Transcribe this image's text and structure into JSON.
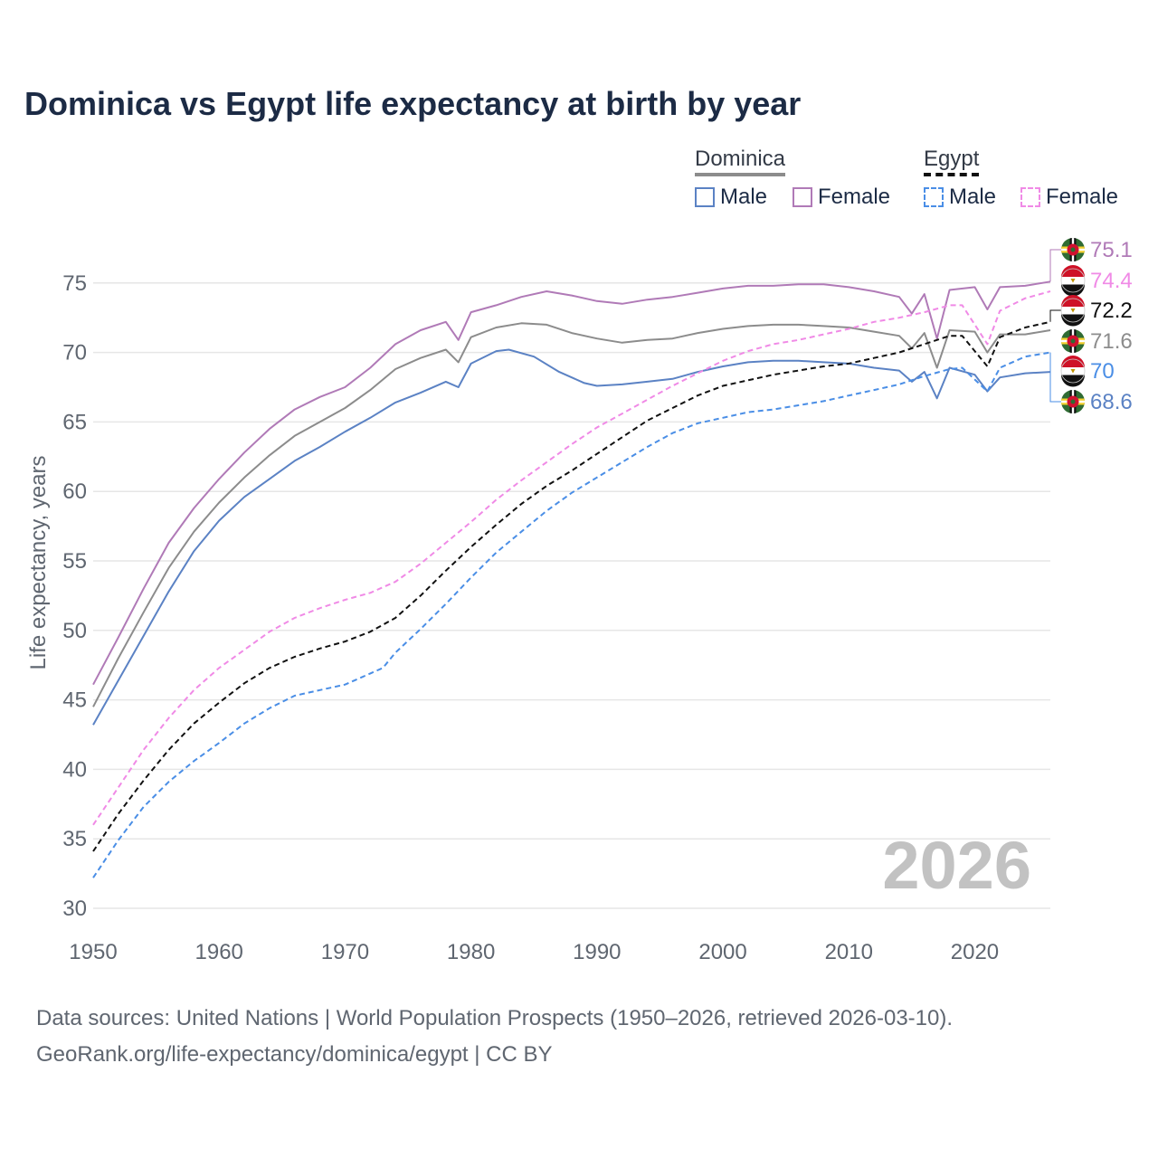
{
  "title": "Dominica vs Egypt life expectancy at birth by year",
  "legend": {
    "groups": [
      {
        "name": "Dominica",
        "items": [
          "Male",
          "Female"
        ]
      },
      {
        "name": "Egypt",
        "items": [
          "Male",
          "Female"
        ]
      }
    ]
  },
  "source": {
    "line1": "Data sources: United Nations | World Population Prospects (1950–2026, retrieved 2026-03-10).",
    "line2": "GeoRank.org/life-expectancy/dominica/egypt | CC BY"
  },
  "colors": {
    "dominica_male": "#5b82c4",
    "dominica_female": "#b07ab7",
    "dominica_total": "#8c8c8c",
    "egypt_male": "#4a8ee6",
    "egypt_female": "#f08ae6",
    "egypt_total": "#111111",
    "grid": "#e6e6e6",
    "axis_text": "#5f6670",
    "watermark": "#c2c2c2"
  },
  "chart_data": {
    "type": "line",
    "title": "Dominica vs Egypt life expectancy at birth by year",
    "xlabel": "",
    "ylabel": "Life expectancy, years",
    "xlim": [
      1950,
      2026
    ],
    "ylim": [
      30,
      78
    ],
    "xticks": [
      1950,
      1960,
      1970,
      1980,
      1990,
      2000,
      2010,
      2020
    ],
    "yticks": [
      30,
      35,
      40,
      45,
      50,
      55,
      60,
      65,
      70,
      75
    ],
    "grid": true,
    "watermark_year": "2026",
    "series": [
      {
        "name": "Dominica Female",
        "country": "Dominica",
        "sex": "Female",
        "style": "solid",
        "color_key": "dominica_female",
        "end_label": "75.1",
        "points": [
          [
            1950,
            46.1
          ],
          [
            1952,
            49.5
          ],
          [
            1954,
            53.0
          ],
          [
            1956,
            56.3
          ],
          [
            1958,
            58.8
          ],
          [
            1960,
            60.9
          ],
          [
            1962,
            62.8
          ],
          [
            1964,
            64.5
          ],
          [
            1966,
            65.9
          ],
          [
            1968,
            66.8
          ],
          [
            1970,
            67.5
          ],
          [
            1972,
            68.9
          ],
          [
            1974,
            70.6
          ],
          [
            1976,
            71.6
          ],
          [
            1978,
            72.2
          ],
          [
            1979,
            70.9
          ],
          [
            1980,
            72.9
          ],
          [
            1982,
            73.4
          ],
          [
            1984,
            74.0
          ],
          [
            1986,
            74.4
          ],
          [
            1988,
            74.1
          ],
          [
            1990,
            73.7
          ],
          [
            1992,
            73.5
          ],
          [
            1994,
            73.8
          ],
          [
            1996,
            74.0
          ],
          [
            1998,
            74.3
          ],
          [
            2000,
            74.6
          ],
          [
            2002,
            74.8
          ],
          [
            2004,
            74.8
          ],
          [
            2006,
            74.9
          ],
          [
            2008,
            74.9
          ],
          [
            2010,
            74.7
          ],
          [
            2012,
            74.4
          ],
          [
            2014,
            74.0
          ],
          [
            2015,
            72.8
          ],
          [
            2016,
            74.2
          ],
          [
            2017,
            71.0
          ],
          [
            2018,
            74.5
          ],
          [
            2020,
            74.7
          ],
          [
            2021,
            73.1
          ],
          [
            2022,
            74.7
          ],
          [
            2024,
            74.8
          ],
          [
            2026,
            75.1
          ]
        ]
      },
      {
        "name": "Dominica",
        "country": "Dominica",
        "sex": "Total",
        "style": "solid",
        "color_key": "dominica_total",
        "end_label": "71.6",
        "points": [
          [
            1950,
            44.5
          ],
          [
            1952,
            48.0
          ],
          [
            1954,
            51.3
          ],
          [
            1956,
            54.5
          ],
          [
            1958,
            57.1
          ],
          [
            1960,
            59.2
          ],
          [
            1962,
            61.0
          ],
          [
            1964,
            62.6
          ],
          [
            1966,
            64.0
          ],
          [
            1968,
            65.0
          ],
          [
            1970,
            66.0
          ],
          [
            1972,
            67.3
          ],
          [
            1974,
            68.8
          ],
          [
            1976,
            69.6
          ],
          [
            1978,
            70.2
          ],
          [
            1979,
            69.3
          ],
          [
            1980,
            71.1
          ],
          [
            1982,
            71.8
          ],
          [
            1984,
            72.1
          ],
          [
            1986,
            72.0
          ],
          [
            1988,
            71.4
          ],
          [
            1990,
            71.0
          ],
          [
            1992,
            70.7
          ],
          [
            1994,
            70.9
          ],
          [
            1996,
            71.0
          ],
          [
            1998,
            71.4
          ],
          [
            2000,
            71.7
          ],
          [
            2002,
            71.9
          ],
          [
            2004,
            72.0
          ],
          [
            2006,
            72.0
          ],
          [
            2008,
            71.9
          ],
          [
            2010,
            71.8
          ],
          [
            2012,
            71.5
          ],
          [
            2014,
            71.2
          ],
          [
            2015,
            70.3
          ],
          [
            2016,
            71.4
          ],
          [
            2017,
            68.9
          ],
          [
            2018,
            71.6
          ],
          [
            2020,
            71.5
          ],
          [
            2021,
            70.0
          ],
          [
            2022,
            71.3
          ],
          [
            2024,
            71.3
          ],
          [
            2026,
            71.6
          ]
        ]
      },
      {
        "name": "Dominica Male",
        "country": "Dominica",
        "sex": "Male",
        "style": "solid",
        "color_key": "dominica_male",
        "end_label": "68.6",
        "points": [
          [
            1950,
            43.2
          ],
          [
            1952,
            46.4
          ],
          [
            1954,
            49.6
          ],
          [
            1956,
            52.8
          ],
          [
            1958,
            55.7
          ],
          [
            1960,
            57.9
          ],
          [
            1962,
            59.6
          ],
          [
            1964,
            60.9
          ],
          [
            1966,
            62.2
          ],
          [
            1968,
            63.2
          ],
          [
            1970,
            64.3
          ],
          [
            1972,
            65.3
          ],
          [
            1974,
            66.4
          ],
          [
            1976,
            67.1
          ],
          [
            1978,
            67.9
          ],
          [
            1979,
            67.5
          ],
          [
            1980,
            69.2
          ],
          [
            1982,
            70.1
          ],
          [
            1983,
            70.2
          ],
          [
            1985,
            69.7
          ],
          [
            1987,
            68.6
          ],
          [
            1989,
            67.8
          ],
          [
            1990,
            67.6
          ],
          [
            1992,
            67.7
          ],
          [
            1994,
            67.9
          ],
          [
            1996,
            68.1
          ],
          [
            1998,
            68.6
          ],
          [
            2000,
            69.0
          ],
          [
            2002,
            69.3
          ],
          [
            2004,
            69.4
          ],
          [
            2006,
            69.4
          ],
          [
            2008,
            69.3
          ],
          [
            2010,
            69.2
          ],
          [
            2012,
            68.9
          ],
          [
            2014,
            68.7
          ],
          [
            2015,
            67.9
          ],
          [
            2016,
            68.6
          ],
          [
            2017,
            66.7
          ],
          [
            2018,
            68.9
          ],
          [
            2020,
            68.4
          ],
          [
            2021,
            67.2
          ],
          [
            2022,
            68.2
          ],
          [
            2024,
            68.5
          ],
          [
            2026,
            68.6
          ]
        ]
      },
      {
        "name": "Egypt Female",
        "country": "Egypt",
        "sex": "Female",
        "style": "dashed",
        "color_key": "egypt_female",
        "end_label": "74.4",
        "points": [
          [
            1950,
            36.0
          ],
          [
            1952,
            38.7
          ],
          [
            1954,
            41.4
          ],
          [
            1956,
            43.7
          ],
          [
            1958,
            45.7
          ],
          [
            1960,
            47.3
          ],
          [
            1962,
            48.6
          ],
          [
            1964,
            49.9
          ],
          [
            1966,
            50.9
          ],
          [
            1968,
            51.6
          ],
          [
            1970,
            52.2
          ],
          [
            1972,
            52.7
          ],
          [
            1974,
            53.5
          ],
          [
            1976,
            54.8
          ],
          [
            1978,
            56.3
          ],
          [
            1980,
            57.8
          ],
          [
            1982,
            59.4
          ],
          [
            1984,
            60.8
          ],
          [
            1986,
            62.1
          ],
          [
            1988,
            63.4
          ],
          [
            1990,
            64.6
          ],
          [
            1992,
            65.6
          ],
          [
            1994,
            66.6
          ],
          [
            1996,
            67.6
          ],
          [
            1998,
            68.5
          ],
          [
            2000,
            69.4
          ],
          [
            2002,
            70.1
          ],
          [
            2004,
            70.6
          ],
          [
            2006,
            70.9
          ],
          [
            2008,
            71.3
          ],
          [
            2010,
            71.7
          ],
          [
            2012,
            72.2
          ],
          [
            2014,
            72.5
          ],
          [
            2016,
            72.9
          ],
          [
            2018,
            73.4
          ],
          [
            2019,
            73.4
          ],
          [
            2021,
            70.6
          ],
          [
            2022,
            73.0
          ],
          [
            2024,
            73.9
          ],
          [
            2026,
            74.4
          ]
        ]
      },
      {
        "name": "Egypt",
        "country": "Egypt",
        "sex": "Total",
        "style": "dashed",
        "color_key": "egypt_total",
        "end_label": "72.2",
        "points": [
          [
            1950,
            34.1
          ],
          [
            1952,
            36.8
          ],
          [
            1954,
            39.2
          ],
          [
            1956,
            41.4
          ],
          [
            1958,
            43.3
          ],
          [
            1960,
            44.8
          ],
          [
            1962,
            46.2
          ],
          [
            1964,
            47.3
          ],
          [
            1966,
            48.1
          ],
          [
            1968,
            48.7
          ],
          [
            1970,
            49.2
          ],
          [
            1972,
            49.9
          ],
          [
            1974,
            50.9
          ],
          [
            1976,
            52.5
          ],
          [
            1978,
            54.3
          ],
          [
            1980,
            56.0
          ],
          [
            1982,
            57.6
          ],
          [
            1984,
            59.1
          ],
          [
            1986,
            60.4
          ],
          [
            1988,
            61.5
          ],
          [
            1990,
            62.7
          ],
          [
            1992,
            63.9
          ],
          [
            1994,
            65.1
          ],
          [
            1996,
            66.0
          ],
          [
            1998,
            66.9
          ],
          [
            2000,
            67.6
          ],
          [
            2002,
            68.0
          ],
          [
            2004,
            68.4
          ],
          [
            2006,
            68.7
          ],
          [
            2008,
            69.0
          ],
          [
            2010,
            69.2
          ],
          [
            2012,
            69.6
          ],
          [
            2014,
            70.0
          ],
          [
            2016,
            70.6
          ],
          [
            2018,
            71.2
          ],
          [
            2019,
            71.2
          ],
          [
            2021,
            69.0
          ],
          [
            2022,
            71.1
          ],
          [
            2024,
            71.8
          ],
          [
            2026,
            72.2
          ]
        ]
      },
      {
        "name": "Egypt Male",
        "country": "Egypt",
        "sex": "Male",
        "style": "dashed",
        "color_key": "egypt_male",
        "end_label": "70",
        "points": [
          [
            1950,
            32.2
          ],
          [
            1952,
            34.9
          ],
          [
            1954,
            37.3
          ],
          [
            1956,
            39.1
          ],
          [
            1958,
            40.6
          ],
          [
            1960,
            41.9
          ],
          [
            1962,
            43.3
          ],
          [
            1964,
            44.4
          ],
          [
            1966,
            45.3
          ],
          [
            1968,
            45.7
          ],
          [
            1970,
            46.1
          ],
          [
            1972,
            46.9
          ],
          [
            1973,
            47.3
          ],
          [
            1974,
            48.4
          ],
          [
            1976,
            50.1
          ],
          [
            1978,
            51.9
          ],
          [
            1980,
            53.8
          ],
          [
            1982,
            55.6
          ],
          [
            1984,
            57.1
          ],
          [
            1986,
            58.6
          ],
          [
            1988,
            59.9
          ],
          [
            1990,
            61.0
          ],
          [
            1992,
            62.1
          ],
          [
            1994,
            63.2
          ],
          [
            1996,
            64.2
          ],
          [
            1998,
            64.9
          ],
          [
            2000,
            65.3
          ],
          [
            2002,
            65.7
          ],
          [
            2004,
            65.9
          ],
          [
            2006,
            66.2
          ],
          [
            2008,
            66.5
          ],
          [
            2010,
            66.9
          ],
          [
            2012,
            67.3
          ],
          [
            2014,
            67.7
          ],
          [
            2016,
            68.3
          ],
          [
            2018,
            68.8
          ],
          [
            2019,
            68.9
          ],
          [
            2021,
            67.2
          ],
          [
            2022,
            68.9
          ],
          [
            2024,
            69.7
          ],
          [
            2026,
            70.0
          ]
        ]
      }
    ],
    "end_labels": [
      {
        "flag": "Dominica",
        "text": "75.1",
        "color_key": "dominica_female"
      },
      {
        "flag": "Egypt",
        "text": "74.4",
        "color_key": "egypt_female"
      },
      {
        "flag": "Egypt",
        "text": "72.2",
        "color_key": "egypt_total"
      },
      {
        "flag": "Dominica",
        "text": "71.6",
        "color_key": "dominica_total"
      },
      {
        "flag": "Egypt",
        "text": "70",
        "color_key": "egypt_male"
      },
      {
        "flag": "Dominica",
        "text": "68.6",
        "color_key": "dominica_male"
      }
    ]
  }
}
